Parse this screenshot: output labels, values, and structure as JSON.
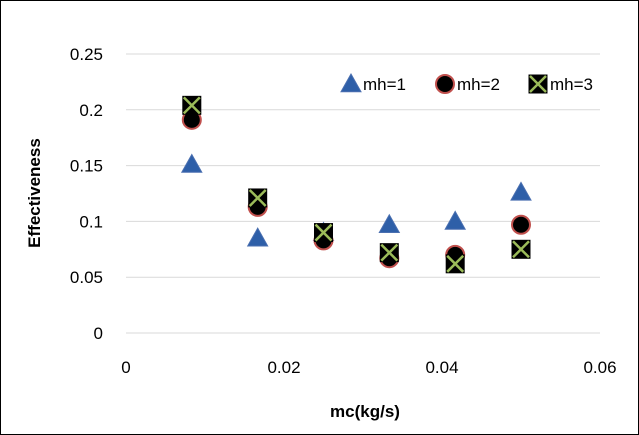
{
  "chart_data": {
    "type": "scatter",
    "title": "",
    "xlabel": "mc(kg/s)",
    "ylabel": "Effectiveness",
    "xlim": [
      0,
      0.06
    ],
    "ylim": [
      0,
      0.25
    ],
    "xticks": [
      "0",
      "0.02",
      "0.04",
      "0.06"
    ],
    "yticks": [
      "0",
      "0.05",
      "0.1",
      "0.15",
      "0.2",
      "0.25"
    ],
    "grid": "horizontal",
    "legend_position": "top-right",
    "series": [
      {
        "name": "mh=1",
        "marker": "triangle",
        "color": "#2E5FA8",
        "x": [
          0.00833,
          0.01667,
          0.025,
          0.03333,
          0.04167,
          0.05
        ],
        "y": [
          0.151,
          0.085,
          0.09,
          0.097,
          0.1,
          0.126
        ]
      },
      {
        "name": "mh=2",
        "marker": "circle",
        "color": "#C0504D",
        "x": [
          0.00833,
          0.01667,
          0.025,
          0.03333,
          0.04167,
          0.05
        ],
        "y": [
          0.191,
          0.113,
          0.083,
          0.067,
          0.07,
          0.097
        ]
      },
      {
        "name": "mh=3",
        "marker": "square-x",
        "color": "#9BBB59",
        "x": [
          0.00833,
          0.01667,
          0.025,
          0.03333,
          0.04167,
          0.05
        ],
        "y": [
          0.204,
          0.121,
          0.09,
          0.072,
          0.062,
          0.075
        ]
      }
    ]
  }
}
